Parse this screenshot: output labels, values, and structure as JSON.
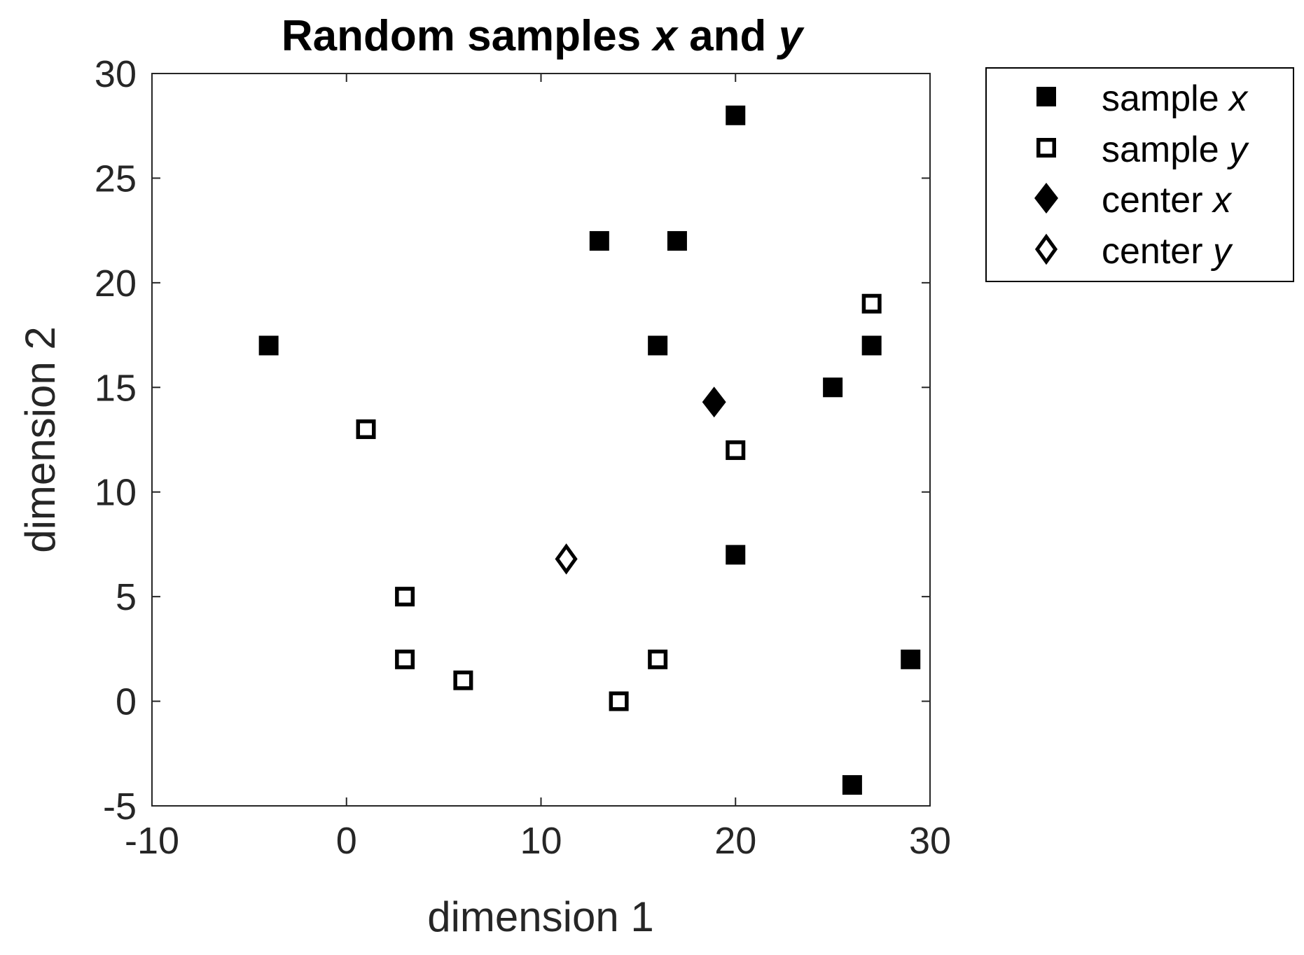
{
  "chart_data": {
    "type": "scatter",
    "title": {
      "prefix": "Random samples ",
      "var1": "x",
      "middle": " and ",
      "var2": "y"
    },
    "xlabel": "dimension 1",
    "ylabel": "dimension 2",
    "xlim": [
      -10,
      30
    ],
    "ylim": [
      -5,
      30
    ],
    "xticks": [
      -10,
      0,
      10,
      20,
      30
    ],
    "yticks": [
      -5,
      0,
      5,
      10,
      15,
      20,
      25,
      30
    ],
    "xtick_labels": [
      "-10",
      "0",
      "10",
      "20",
      "30"
    ],
    "ytick_labels": [
      "-5",
      "0",
      "5",
      "10",
      "15",
      "20",
      "25",
      "30"
    ],
    "grid": false,
    "legend_position": "outside-top-right",
    "series": [
      {
        "name_prefix": "sample ",
        "name_var": "x",
        "marker": "square-filled",
        "color": "#000000",
        "points": [
          [
            -4,
            17
          ],
          [
            13,
            22
          ],
          [
            17,
            22
          ],
          [
            20,
            28
          ],
          [
            16,
            17
          ],
          [
            25,
            15
          ],
          [
            27,
            17
          ],
          [
            20,
            7
          ],
          [
            29,
            2
          ],
          [
            26,
            -4
          ]
        ]
      },
      {
        "name_prefix": "sample ",
        "name_var": "y",
        "marker": "square-open",
        "color": "#000000",
        "points": [
          [
            1,
            13
          ],
          [
            3,
            5
          ],
          [
            3,
            2
          ],
          [
            6,
            1
          ],
          [
            14,
            0
          ],
          [
            16,
            2
          ],
          [
            20,
            12
          ],
          [
            27,
            19
          ]
        ]
      },
      {
        "name_prefix": "center ",
        "name_var": "x",
        "marker": "diamond-filled",
        "color": "#000000",
        "points": [
          [
            18.9,
            14.3
          ]
        ]
      },
      {
        "name_prefix": "center ",
        "name_var": "y",
        "marker": "diamond-open",
        "color": "#000000",
        "points": [
          [
            11.3,
            6.8
          ]
        ]
      }
    ]
  }
}
